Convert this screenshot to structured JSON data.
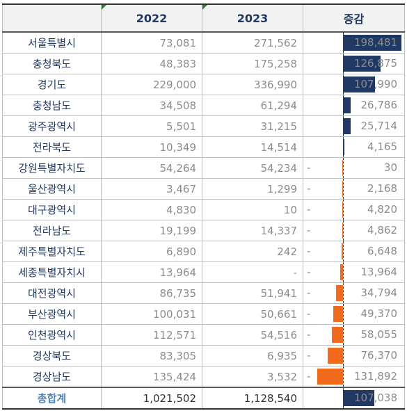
{
  "headers": [
    "",
    "2022",
    "2023",
    "증감"
  ],
  "scale_max": 198481,
  "rows": [
    {
      "region": "서울특별시",
      "y2022": "73,081",
      "y2023": "271,562",
      "change": "198,481",
      "sign": "",
      "value": 198481
    },
    {
      "region": "충청북도",
      "y2022": "48,383",
      "y2023": "175,258",
      "change": "126,875",
      "sign": "",
      "value": 126875
    },
    {
      "region": "경기도",
      "y2022": "229,000",
      "y2023": "336,990",
      "change": "107,990",
      "sign": "",
      "value": 107990
    },
    {
      "region": "충청남도",
      "y2022": "34,508",
      "y2023": "61,294",
      "change": "26,786",
      "sign": "",
      "value": 26786
    },
    {
      "region": "광주광역시",
      "y2022": "5,501",
      "y2023": "31,215",
      "change": "25,714",
      "sign": "",
      "value": 25714
    },
    {
      "region": "전라북도",
      "y2022": "10,349",
      "y2023": "14,514",
      "change": "4,165",
      "sign": "",
      "value": 4165
    },
    {
      "region": "강원특별자치도",
      "y2022": "54,264",
      "y2023": "54,234",
      "change": "30",
      "sign": "-",
      "value": -30
    },
    {
      "region": "울산광역시",
      "y2022": "3,467",
      "y2023": "1,299",
      "change": "2,168",
      "sign": "-",
      "value": -2168
    },
    {
      "region": "대구광역시",
      "y2022": "4,830",
      "y2023": "10",
      "change": "4,820",
      "sign": "-",
      "value": -4820
    },
    {
      "region": "전라남도",
      "y2022": "19,199",
      "y2023": "14,337",
      "change": "4,862",
      "sign": "-",
      "value": -4862
    },
    {
      "region": "제주특별자치도",
      "y2022": "6,890",
      "y2023": "242",
      "change": "6,648",
      "sign": "-",
      "value": -6648
    },
    {
      "region": "세종특별자치시",
      "y2022": "13,964",
      "y2023": "-",
      "change": "13,964",
      "sign": "-",
      "value": -13964
    },
    {
      "region": "대전광역시",
      "y2022": "86,735",
      "y2023": "51,941",
      "change": "34,794",
      "sign": "-",
      "value": -34794
    },
    {
      "region": "부산광역시",
      "y2022": "100,031",
      "y2023": "50,661",
      "change": "49,370",
      "sign": "-",
      "value": -49370
    },
    {
      "region": "인천광역시",
      "y2022": "112,571",
      "y2023": "54,516",
      "change": "58,055",
      "sign": "-",
      "value": -58055
    },
    {
      "region": "경상북도",
      "y2022": "83,305",
      "y2023": "6,935",
      "change": "76,370",
      "sign": "-",
      "value": -76370
    },
    {
      "region": "경상남도",
      "y2022": "135,424",
      "y2023": "3,532",
      "change": "131,892",
      "sign": "-",
      "value": -131892
    }
  ],
  "total": {
    "region": "총합계",
    "y2022": "1,021,502",
    "y2023": "1,128,540",
    "change": "107,038",
    "sign": "",
    "value": 107038
  },
  "colors": {
    "positive": "#1f3864",
    "negative": "#f26b1d",
    "header_text": "#1f3864",
    "total_label": "#4f81bd"
  }
}
